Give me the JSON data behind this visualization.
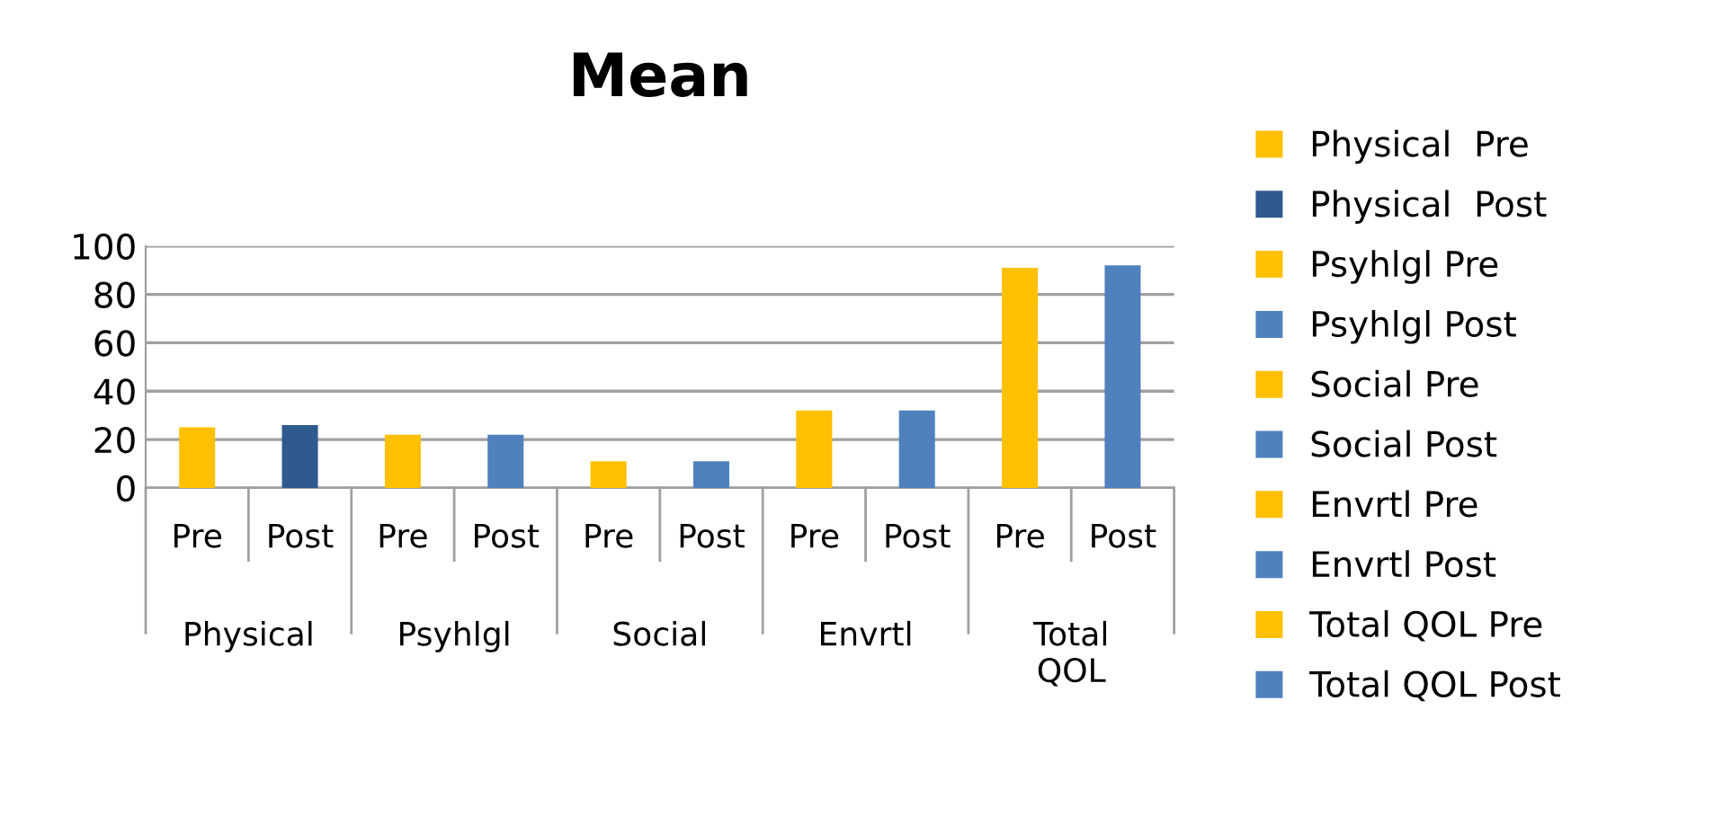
{
  "chart_data": {
    "type": "bar",
    "title": "Mean",
    "categories": [
      "Pre",
      "Post",
      "Pre",
      "Post",
      "Pre",
      "Post",
      "Pre",
      "Post",
      "Pre",
      "Post"
    ],
    "series": [
      {
        "name": "Physical  Pre",
        "color": "#ffc000",
        "values": [
          25,
          null,
          null,
          null,
          null,
          null,
          null,
          null,
          null,
          null
        ]
      },
      {
        "name": "Physical  Post",
        "color": "#2f5a8e",
        "values": [
          null,
          26,
          null,
          null,
          null,
          null,
          null,
          null,
          null,
          null
        ]
      },
      {
        "name": "Psyhlgl Pre",
        "color": "#ffc000",
        "values": [
          null,
          null,
          22,
          null,
          null,
          null,
          null,
          null,
          null,
          null
        ]
      },
      {
        "name": "Psyhlgl Post",
        "color": "#4f81bd",
        "values": [
          null,
          null,
          null,
          22,
          null,
          null,
          null,
          null,
          null,
          null
        ]
      },
      {
        "name": "Social Pre",
        "color": "#ffc000",
        "values": [
          null,
          null,
          null,
          null,
          11,
          null,
          null,
          null,
          null,
          null
        ]
      },
      {
        "name": "Social Post",
        "color": "#4f81bd",
        "values": [
          null,
          null,
          null,
          null,
          null,
          11,
          null,
          null,
          null,
          null
        ]
      },
      {
        "name": "Envrtl Pre",
        "color": "#ffc000",
        "values": [
          null,
          null,
          null,
          null,
          null,
          null,
          32,
          null,
          null,
          null
        ]
      },
      {
        "name": "Envrtl Post",
        "color": "#4f81bd",
        "values": [
          null,
          null,
          null,
          null,
          null,
          null,
          null,
          32,
          null,
          null
        ]
      },
      {
        "name": "Total QOL Pre",
        "color": "#ffc000",
        "values": [
          null,
          null,
          null,
          null,
          null,
          null,
          null,
          null,
          91,
          null
        ]
      },
      {
        "name": "Total QOL Post",
        "color": "#4f81bd",
        "values": [
          null,
          null,
          null,
          null,
          null,
          null,
          null,
          null,
          null,
          92
        ]
      }
    ],
    "annotations": [
      "Physical",
      "Psyhlgl",
      "Social",
      "Envrtl",
      "Total\nQOL"
    ],
    "ylim": [
      0,
      100
    ],
    "yticks": [
      0,
      20,
      40,
      60,
      80,
      100
    ],
    "grid": "y",
    "legend": "right"
  }
}
